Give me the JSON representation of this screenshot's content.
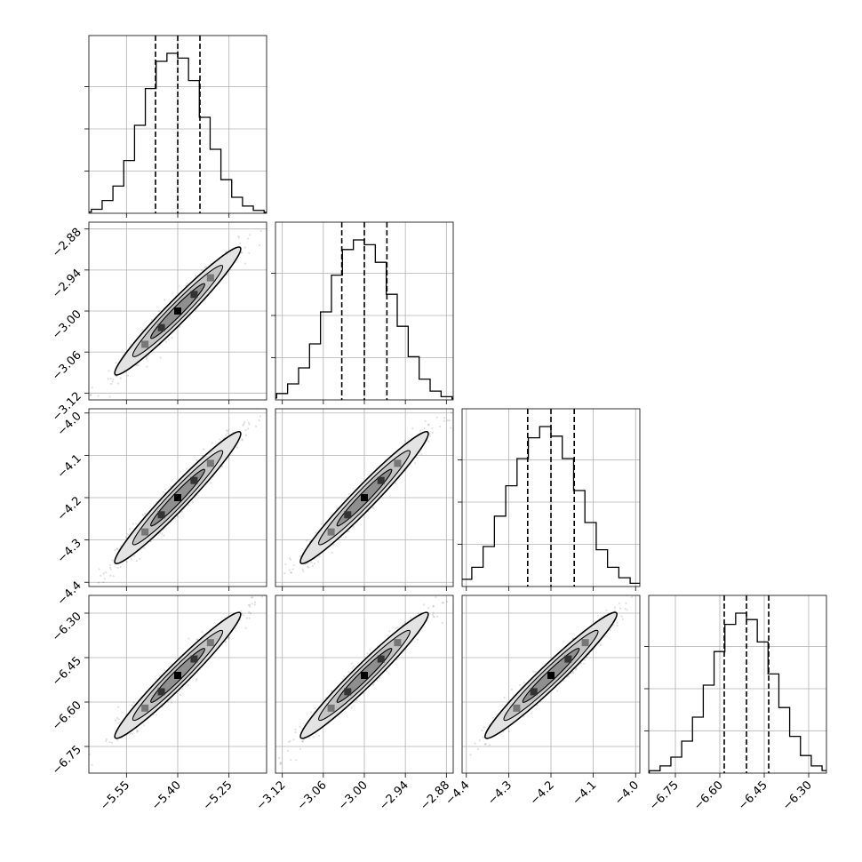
{
  "chart_data": {
    "type": "corner",
    "parameters": [
      {
        "range": [
          -5.66,
          -5.14
        ],
        "ticks": [
          -5.55,
          -5.4,
          -5.25
        ],
        "tick_labels": [
          "−5.55",
          "−5.40",
          "−5.25"
        ],
        "quantiles": [
          -5.465,
          -5.4,
          -5.335
        ],
        "histogram": [
          0.002,
          0.008,
          0.025,
          0.08,
          0.17,
          0.33,
          0.55,
          0.78,
          0.95,
          1.0,
          0.97,
          0.83,
          0.6,
          0.4,
          0.21,
          0.1,
          0.045,
          0.018,
          0.006,
          0.002
        ]
      },
      {
        "range": [
          -3.13,
          -2.87
        ],
        "ticks": [
          -3.12,
          -3.06,
          -3.0,
          -2.94,
          -2.88
        ],
        "tick_labels": [
          "−3.12",
          "−3.06",
          "−3.00",
          "−2.94",
          "−2.88"
        ],
        "quantiles": [
          -3.033,
          -3.0,
          -2.967
        ],
        "histogram": [
          0.003,
          0.012,
          0.04,
          0.1,
          0.2,
          0.35,
          0.55,
          0.78,
          0.94,
          1.0,
          0.97,
          0.86,
          0.66,
          0.46,
          0.27,
          0.13,
          0.055,
          0.02,
          0.007,
          0.003
        ]
      },
      {
        "range": [
          -4.41,
          -3.99
        ],
        "ticks": [
          -4.4,
          -4.3,
          -4.2,
          -4.1,
          -4.0
        ],
        "tick_labels": [
          "−4.4",
          "−4.3",
          "−4.2",
          "−4.1",
          "−4.0"
        ],
        "quantiles": [
          -4.255,
          -4.2,
          -4.145
        ],
        "histogram": [
          0.004,
          0.015,
          0.045,
          0.12,
          0.25,
          0.44,
          0.63,
          0.8,
          0.93,
          1.0,
          0.94,
          0.8,
          0.6,
          0.4,
          0.23,
          0.12,
          0.055,
          0.02,
          0.008,
          0.003
        ]
      },
      {
        "range": [
          -6.84,
          -6.24
        ],
        "ticks": [
          -6.75,
          -6.6,
          -6.45,
          -6.3
        ],
        "tick_labels": [
          "−6.75",
          "−6.60",
          "−6.45",
          "−6.30"
        ],
        "quantiles": [
          -6.585,
          -6.51,
          -6.435
        ],
        "histogram": [
          0.004,
          0.015,
          0.045,
          0.1,
          0.2,
          0.35,
          0.55,
          0.76,
          0.93,
          1.0,
          0.96,
          0.82,
          0.62,
          0.41,
          0.23,
          0.11,
          0.045,
          0.016,
          0.006,
          0.002
        ]
      }
    ],
    "correlation": 0.97,
    "grid": true,
    "xlabel": "",
    "ylabel": ""
  }
}
